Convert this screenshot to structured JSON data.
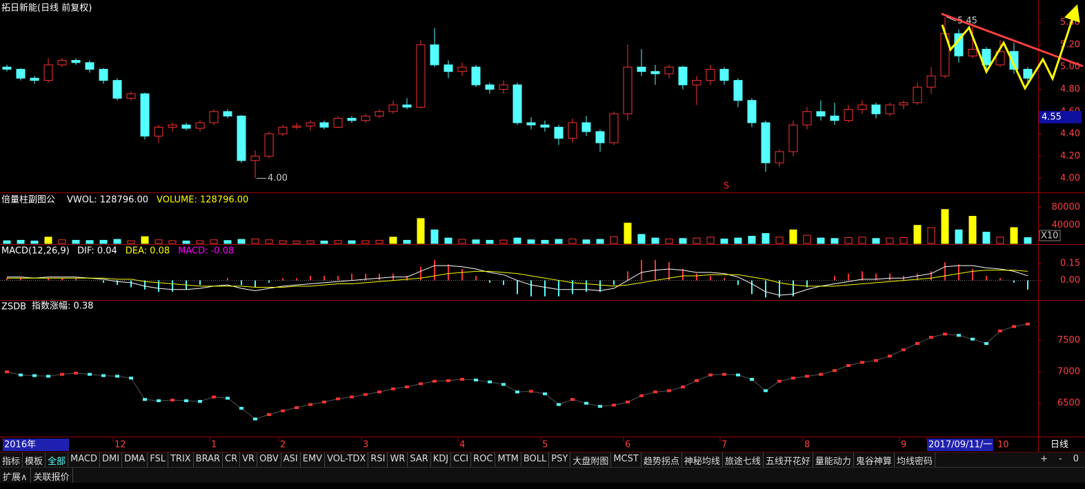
{
  "header": {
    "title": "拓日新能(日线 前复权)"
  },
  "chart_data": [
    {
      "type": "candlestick",
      "name": "拓日新能",
      "up_color": "#ff3232",
      "down_color": "#54ffff",
      "open": [
        5.0,
        4.98,
        4.9,
        4.88,
        5.02,
        5.06,
        5.04,
        4.98,
        4.88,
        4.72,
        4.76,
        4.38,
        4.46,
        4.48,
        4.45,
        4.5,
        4.6,
        4.56,
        4.16,
        4.2,
        4.4,
        4.46,
        4.47,
        4.5,
        4.46,
        4.54,
        4.52,
        4.56,
        4.6,
        4.66,
        4.64,
        5.2,
        5.02,
        4.96,
        5.0,
        4.84,
        4.8,
        4.84,
        4.5,
        4.48,
        4.46,
        4.36,
        4.5,
        4.42,
        4.32,
        4.58,
        5.0,
        4.96,
        4.94,
        5.0,
        4.84,
        4.88,
        4.98,
        4.88,
        4.7,
        4.5,
        4.14,
        4.24,
        4.48,
        4.6,
        4.56,
        4.52,
        4.62,
        4.66,
        4.58,
        4.66,
        4.68,
        4.82,
        4.92,
        5.3,
        5.1,
        5.16,
        5.02,
        5.14,
        4.98
      ],
      "high": [
        5.02,
        4.99,
        4.92,
        5.08,
        5.08,
        5.08,
        5.06,
        4.99,
        4.9,
        4.78,
        4.77,
        4.48,
        4.5,
        4.5,
        4.52,
        4.62,
        4.62,
        4.57,
        4.25,
        4.42,
        4.48,
        4.5,
        4.52,
        4.52,
        4.56,
        4.56,
        4.58,
        4.62,
        4.7,
        4.72,
        5.24,
        5.35,
        5.06,
        5.04,
        5.02,
        4.86,
        4.88,
        4.86,
        4.55,
        4.52,
        4.48,
        4.54,
        4.56,
        4.44,
        4.6,
        5.2,
        5.16,
        5.02,
        5.02,
        5.01,
        4.92,
        5.02,
        5.0,
        4.9,
        4.72,
        4.52,
        4.26,
        4.52,
        4.64,
        4.7,
        4.68,
        4.66,
        4.7,
        4.68,
        4.68,
        4.7,
        4.86,
        5.0,
        5.45,
        5.34,
        5.36,
        5.18,
        5.24,
        5.22,
        5.0
      ],
      "low": [
        4.96,
        4.88,
        4.85,
        4.86,
        5.0,
        5.02,
        4.95,
        4.85,
        4.7,
        4.7,
        4.35,
        4.32,
        4.42,
        4.43,
        4.42,
        4.48,
        4.54,
        4.14,
        4.0,
        4.18,
        4.38,
        4.44,
        4.43,
        4.44,
        4.45,
        4.5,
        4.5,
        4.54,
        4.58,
        4.62,
        4.63,
        5.0,
        4.9,
        4.92,
        4.82,
        4.76,
        4.76,
        4.48,
        4.44,
        4.42,
        4.3,
        4.32,
        4.38,
        4.24,
        4.3,
        4.52,
        4.92,
        4.84,
        4.9,
        4.8,
        4.66,
        4.84,
        4.84,
        4.64,
        4.46,
        4.06,
        4.1,
        4.2,
        4.44,
        4.52,
        4.48,
        4.5,
        4.58,
        4.54,
        4.56,
        4.62,
        4.66,
        4.76,
        4.9,
        5.04,
        5.08,
        4.96,
        5.0,
        4.94,
        4.84
      ],
      "close": [
        4.98,
        4.9,
        4.88,
        5.02,
        5.06,
        5.04,
        4.98,
        4.88,
        4.72,
        4.76,
        4.38,
        4.46,
        4.48,
        4.45,
        4.5,
        4.6,
        4.56,
        4.16,
        4.2,
        4.4,
        4.46,
        4.47,
        4.5,
        4.46,
        4.54,
        4.52,
        4.56,
        4.6,
        4.66,
        4.64,
        5.2,
        5.02,
        4.96,
        5.0,
        4.84,
        4.8,
        4.84,
        4.5,
        4.48,
        4.46,
        4.36,
        4.5,
        4.42,
        4.32,
        4.58,
        5.0,
        4.96,
        4.94,
        5.0,
        4.84,
        4.88,
        4.98,
        4.88,
        4.7,
        4.5,
        4.14,
        4.24,
        4.48,
        4.6,
        4.56,
        4.52,
        4.62,
        4.66,
        4.58,
        4.66,
        4.68,
        4.82,
        4.92,
        5.3,
        5.1,
        5.16,
        5.02,
        5.14,
        4.98,
        4.9
      ],
      "ylim": [
        3.88,
        5.59
      ],
      "yticks": [
        {
          "value": 4.0,
          "label": "4.00"
        },
        {
          "value": 4.2,
          "label": "4.20"
        },
        {
          "value": 4.4,
          "label": "4.40"
        },
        {
          "value": 4.6,
          "label": "4.60"
        },
        {
          "value": 4.8,
          "label": "4.80"
        },
        {
          "value": 5.0,
          "label": "5.00"
        },
        {
          "value": 5.2,
          "label": "5.20"
        },
        {
          "value": 5.4,
          "label": "5.40"
        }
      ],
      "max_label": "5.45",
      "min_label": "4.00",
      "signal": "S",
      "price_tag": 4.55
    },
    {
      "type": "bar",
      "name": "倍量柱副图公",
      "legend": [
        {
          "text": "VWOL: 128796.00",
          "color": "#ffffff"
        },
        {
          "text": "VOLUME: 128796.00",
          "color": "#ffff00"
        }
      ],
      "up_color": "#ff3232",
      "down_color": "#54ffff",
      "double_color": "#ffff00",
      "values": [
        6000,
        7000,
        5500,
        14000,
        8000,
        7000,
        6500,
        7000,
        9000,
        6000,
        15000,
        8000,
        6000,
        5500,
        6000,
        8000,
        6500,
        9000,
        10000,
        8000,
        6000,
        5500,
        6000,
        5500,
        6500,
        6000,
        6000,
        7000,
        14000,
        7000,
        55000,
        30000,
        12000,
        9000,
        8000,
        7000,
        7500,
        12000,
        8000,
        7000,
        9000,
        10000,
        8000,
        9000,
        15000,
        45000,
        20000,
        12000,
        10000,
        11000,
        12000,
        14000,
        10000,
        12000,
        16000,
        22000,
        14000,
        30000,
        18000,
        12000,
        11000,
        13000,
        14000,
        11000,
        12000,
        13000,
        40000,
        35000,
        75000,
        30000,
        60000,
        25000,
        14000,
        35000,
        12880
      ],
      "ylim": [
        0,
        108000
      ],
      "yticks": [
        40000,
        80000
      ],
      "unit": "X10"
    },
    {
      "type": "macd",
      "name": "MACD(12,26,9)",
      "legend": [
        {
          "text": "DIF: 0.04",
          "color": "#ffffff"
        },
        {
          "text": "DEA: 0.08",
          "color": "#ffff00"
        },
        {
          "text": "MACD: -0.08",
          "color": "#ff00ff"
        }
      ],
      "dif": [
        0.03,
        0.03,
        0.02,
        0.03,
        0.03,
        0.03,
        0.02,
        0.01,
        -0.01,
        -0.02,
        -0.05,
        -0.07,
        -0.08,
        -0.08,
        -0.07,
        -0.05,
        -0.04,
        -0.07,
        -0.09,
        -0.07,
        -0.05,
        -0.04,
        -0.03,
        -0.02,
        -0.01,
        0.0,
        0.01,
        0.02,
        0.03,
        0.03,
        0.08,
        0.13,
        0.13,
        0.12,
        0.1,
        0.07,
        0.05,
        0.0,
        -0.04,
        -0.06,
        -0.08,
        -0.08,
        -0.08,
        -0.09,
        -0.07,
        0.0,
        0.07,
        0.09,
        0.1,
        0.09,
        0.07,
        0.07,
        0.06,
        0.03,
        -0.03,
        -0.1,
        -0.13,
        -0.12,
        -0.08,
        -0.05,
        -0.03,
        -0.01,
        0.01,
        0.01,
        0.02,
        0.02,
        0.04,
        0.06,
        0.12,
        0.13,
        0.13,
        0.11,
        0.1,
        0.08,
        0.04
      ],
      "dea": [
        0.02,
        0.02,
        0.02,
        0.02,
        0.02,
        0.02,
        0.02,
        0.02,
        0.01,
        0.01,
        -0.01,
        -0.02,
        -0.03,
        -0.04,
        -0.05,
        -0.05,
        -0.05,
        -0.05,
        -0.06,
        -0.06,
        -0.06,
        -0.05,
        -0.05,
        -0.04,
        -0.03,
        -0.03,
        -0.02,
        -0.01,
        0.0,
        0.01,
        0.02,
        0.04,
        0.06,
        0.07,
        0.08,
        0.08,
        0.07,
        0.06,
        0.04,
        0.02,
        0.0,
        -0.02,
        -0.03,
        -0.04,
        -0.05,
        -0.04,
        -0.02,
        0.0,
        0.02,
        0.04,
        0.04,
        0.05,
        0.05,
        0.05,
        0.03,
        0.01,
        -0.02,
        -0.04,
        -0.05,
        -0.05,
        -0.05,
        -0.04,
        -0.03,
        -0.02,
        -0.01,
        0.0,
        0.01,
        0.02,
        0.04,
        0.06,
        0.08,
        0.09,
        0.09,
        0.09,
        0.08
      ],
      "macd": [
        0.02,
        0.02,
        0,
        0.02,
        0.02,
        0.02,
        0,
        -0.02,
        -0.04,
        -0.06,
        -0.08,
        -0.1,
        -0.1,
        -0.08,
        -0.04,
        0,
        0.02,
        -0.04,
        -0.06,
        -0.02,
        0.02,
        0.02,
        0.04,
        0.04,
        0.04,
        0.06,
        0.06,
        0.06,
        0.06,
        0.04,
        0.12,
        0.18,
        0.14,
        0.1,
        0.04,
        -0.02,
        -0.04,
        -0.12,
        -0.14,
        -0.14,
        -0.14,
        -0.12,
        -0.1,
        -0.1,
        -0.04,
        0.08,
        0.18,
        0.18,
        0.16,
        0.1,
        0.06,
        0.04,
        0.02,
        -0.04,
        -0.12,
        -0.15,
        -0.15,
        -0.14,
        -0.06,
        0,
        0.04,
        0.06,
        0.08,
        0.06,
        0.06,
        0.04,
        0.06,
        0.08,
        0.16,
        0.14,
        0.1,
        0.04,
        0.02,
        -0.02,
        -0.08
      ],
      "dif_color": "#ffffff",
      "dea_color": "#ffff00",
      "up_color": "#ff3232",
      "down_color": "#54ffff",
      "ylim": [
        -0.16,
        0.3
      ],
      "yticks": [
        {
          "value": 0,
          "label": "0.00"
        },
        {
          "value": 0.15,
          "label": "0.15"
        }
      ]
    },
    {
      "type": "line",
      "name": "ZSDB",
      "legend": [
        {
          "text": "指数涨幅: 0.38",
          "color": "#ffffff"
        }
      ],
      "up_color": "#ff3232",
      "down_color": "#54ffff",
      "values": [
        7000,
        6950,
        6940,
        6930,
        6960,
        6980,
        6960,
        6940,
        6930,
        6900,
        6560,
        6540,
        6550,
        6540,
        6530,
        6600,
        6580,
        6420,
        6250,
        6320,
        6380,
        6430,
        6480,
        6520,
        6570,
        6600,
        6640,
        6680,
        6730,
        6760,
        6810,
        6850,
        6860,
        6880,
        6870,
        6840,
        6800,
        6680,
        6690,
        6650,
        6480,
        6560,
        6500,
        6450,
        6470,
        6520,
        6620,
        6680,
        6700,
        6760,
        6860,
        6950,
        6960,
        6950,
        6880,
        6700,
        6850,
        6900,
        6930,
        6960,
        7020,
        7100,
        7150,
        7180,
        7250,
        7350,
        7450,
        7550,
        7600,
        7580,
        7520,
        7450,
        7650,
        7720,
        7760
      ],
      "ylim": [
        5970,
        8120
      ],
      "yticks": [
        6500,
        7000,
        7500
      ],
      "categories": [
        "2016年",
        null,
        null,
        null,
        null,
        null,
        null,
        null,
        "12",
        null,
        null,
        null,
        null,
        null,
        null,
        "1",
        null,
        null,
        null,
        null,
        "2",
        null,
        null,
        null,
        null,
        null,
        "3",
        null,
        null,
        null,
        null,
        null,
        null,
        "4",
        null,
        null,
        null,
        null,
        null,
        "5",
        null,
        null,
        null,
        null,
        null,
        "6",
        null,
        null,
        null,
        null,
        null,
        null,
        "7",
        null,
        null,
        null,
        null,
        null,
        "8",
        null,
        null,
        null,
        null,
        null,
        null,
        "9",
        null,
        "2017/09/11/一",
        null,
        null,
        null,
        null,
        "10",
        null,
        null
      ],
      "period": "日线"
    }
  ],
  "tabs": [
    "指标",
    "模板",
    "全部",
    "MACD",
    "DMI",
    "DMA",
    "FSL",
    "TRIX",
    "BRAR",
    "CR",
    "VR",
    "OBV",
    "ASI",
    "EMV",
    "VOL-TDX",
    "RSI",
    "WR",
    "SAR",
    "KDJ",
    "CCI",
    "ROC",
    "MTM",
    "BOLL",
    "PSY",
    "大盘附图",
    "MCST",
    "趋势拐点",
    "神秘均线",
    "旅途七线",
    "五线开花好",
    "量能动力",
    "鬼谷神算",
    "均线密码"
  ],
  "tab_controls": [
    "+",
    "-",
    "0"
  ],
  "footer": [
    "扩展∧",
    "关联报价"
  ]
}
